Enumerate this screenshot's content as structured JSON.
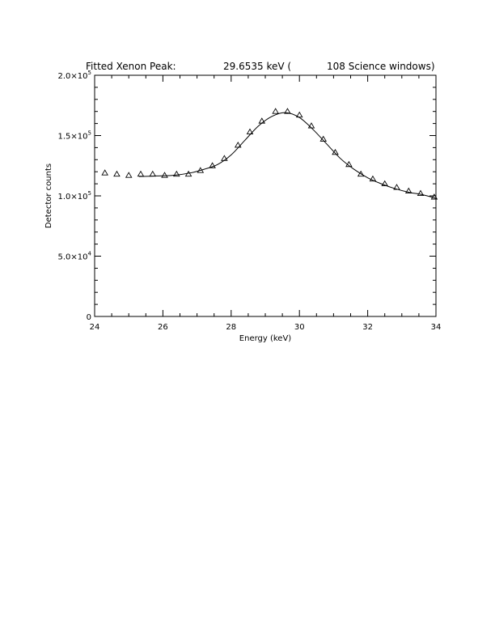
{
  "chart_data": {
    "type": "scatter",
    "title": {
      "prefix": "Fitted Xenon Peak:",
      "energy": "29.6535 keV (",
      "windows": "108 Science windows)"
    },
    "xlabel": "Energy (keV)",
    "ylabel": "Detector counts",
    "xlim": [
      24,
      34
    ],
    "ylim": [
      0,
      200000
    ],
    "x_ticks": [
      {
        "value": 24,
        "label": "24"
      },
      {
        "value": 26,
        "label": "26"
      },
      {
        "value": 28,
        "label": "28"
      },
      {
        "value": 30,
        "label": "30"
      },
      {
        "value": 32,
        "label": "32"
      },
      {
        "value": 34,
        "label": "34"
      }
    ],
    "y_ticks": [
      {
        "value": 0,
        "mant": "0",
        "exp": ""
      },
      {
        "value": 50000,
        "mant": "5.0×10",
        "exp": "4"
      },
      {
        "value": 100000,
        "mant": "1.0×10",
        "exp": "5"
      },
      {
        "value": 150000,
        "mant": "1.5×10",
        "exp": "5"
      },
      {
        "value": 200000,
        "mant": "2.0×10",
        "exp": "5"
      }
    ],
    "grid": false,
    "series": [
      {
        "marker": "triangle",
        "x": [
          24.3,
          24.65,
          25.0,
          25.35,
          25.7,
          26.05,
          26.4,
          26.75,
          27.1,
          27.45,
          27.8,
          28.2,
          28.55,
          28.9,
          29.3,
          29.65,
          30.0,
          30.35,
          30.7,
          31.05,
          31.45,
          31.8,
          32.15,
          32.5,
          32.85,
          33.2,
          33.55,
          33.95
        ],
        "y": [
          119000,
          118000,
          117000,
          118000,
          118000,
          117000,
          118000,
          118000,
          121000,
          125000,
          131000,
          142000,
          153000,
          162000,
          170000,
          170000,
          167000,
          158000,
          147000,
          136000,
          126000,
          118000,
          114000,
          110000,
          107000,
          104000,
          102000,
          99000
        ]
      }
    ],
    "fit": {
      "type": "line",
      "x": [
        25.3,
        25.8,
        26.3,
        26.8,
        27.2,
        27.6,
        28.0,
        28.4,
        28.8,
        29.2,
        29.6,
        30.0,
        30.4,
        30.8,
        31.2,
        31.6,
        32.0,
        32.4,
        32.8,
        33.2,
        33.6,
        34.0
      ],
      "y": [
        116000,
        116500,
        117000,
        119000,
        122000,
        126000,
        134000,
        146000,
        158000,
        166000,
        169000,
        165000,
        155000,
        143000,
        131000,
        122000,
        115000,
        110000,
        106000,
        103000,
        101000,
        98000
      ]
    }
  }
}
